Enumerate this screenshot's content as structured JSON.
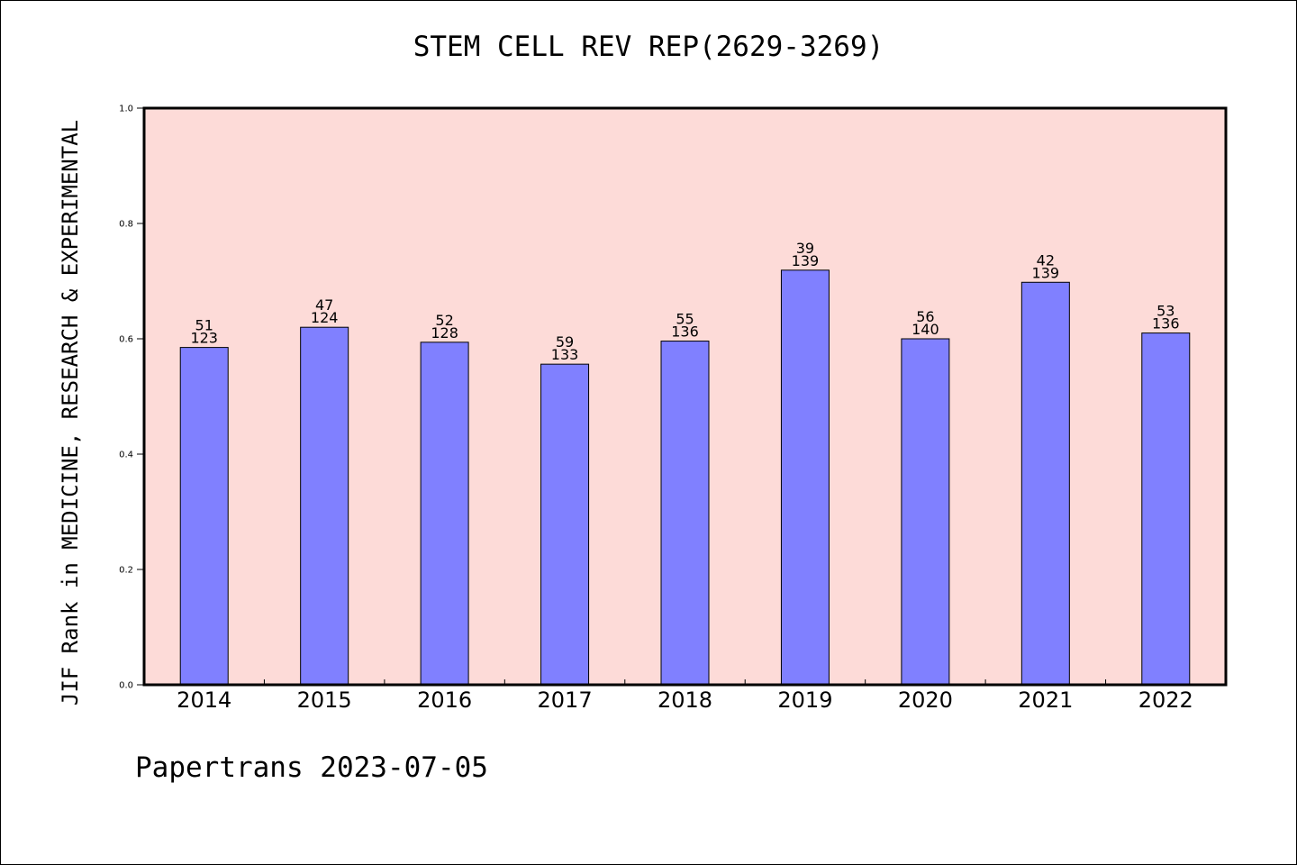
{
  "chart_data": {
    "type": "bar",
    "title": "STEM CELL REV REP(2629-3269)",
    "ylabel": "JIF Rank in MEDICINE, RESEARCH & EXPERIMENTAL",
    "xlabel": "",
    "categories": [
      "2014",
      "2015",
      "2016",
      "2017",
      "2018",
      "2019",
      "2020",
      "2021",
      "2022"
    ],
    "values": [
      0.585,
      0.62,
      0.594,
      0.556,
      0.596,
      0.719,
      0.6,
      0.698,
      0.61
    ],
    "ranks": [
      "51",
      "47",
      "52",
      "59",
      "55",
      "39",
      "56",
      "42",
      "53"
    ],
    "totals": [
      "123",
      "124",
      "128",
      "133",
      "136",
      "139",
      "140",
      "139",
      "136"
    ],
    "ylim": [
      0,
      1.0
    ],
    "yticks": [
      "0.0",
      "0.2",
      "0.4",
      "0.6",
      "0.8",
      "1.0"
    ],
    "colors": {
      "bar": "#8080ff",
      "plot_background": "#fddbd8",
      "frame": "#000000"
    },
    "grid": false,
    "legend": "none"
  },
  "footer": "Papertrans 2023-07-05"
}
